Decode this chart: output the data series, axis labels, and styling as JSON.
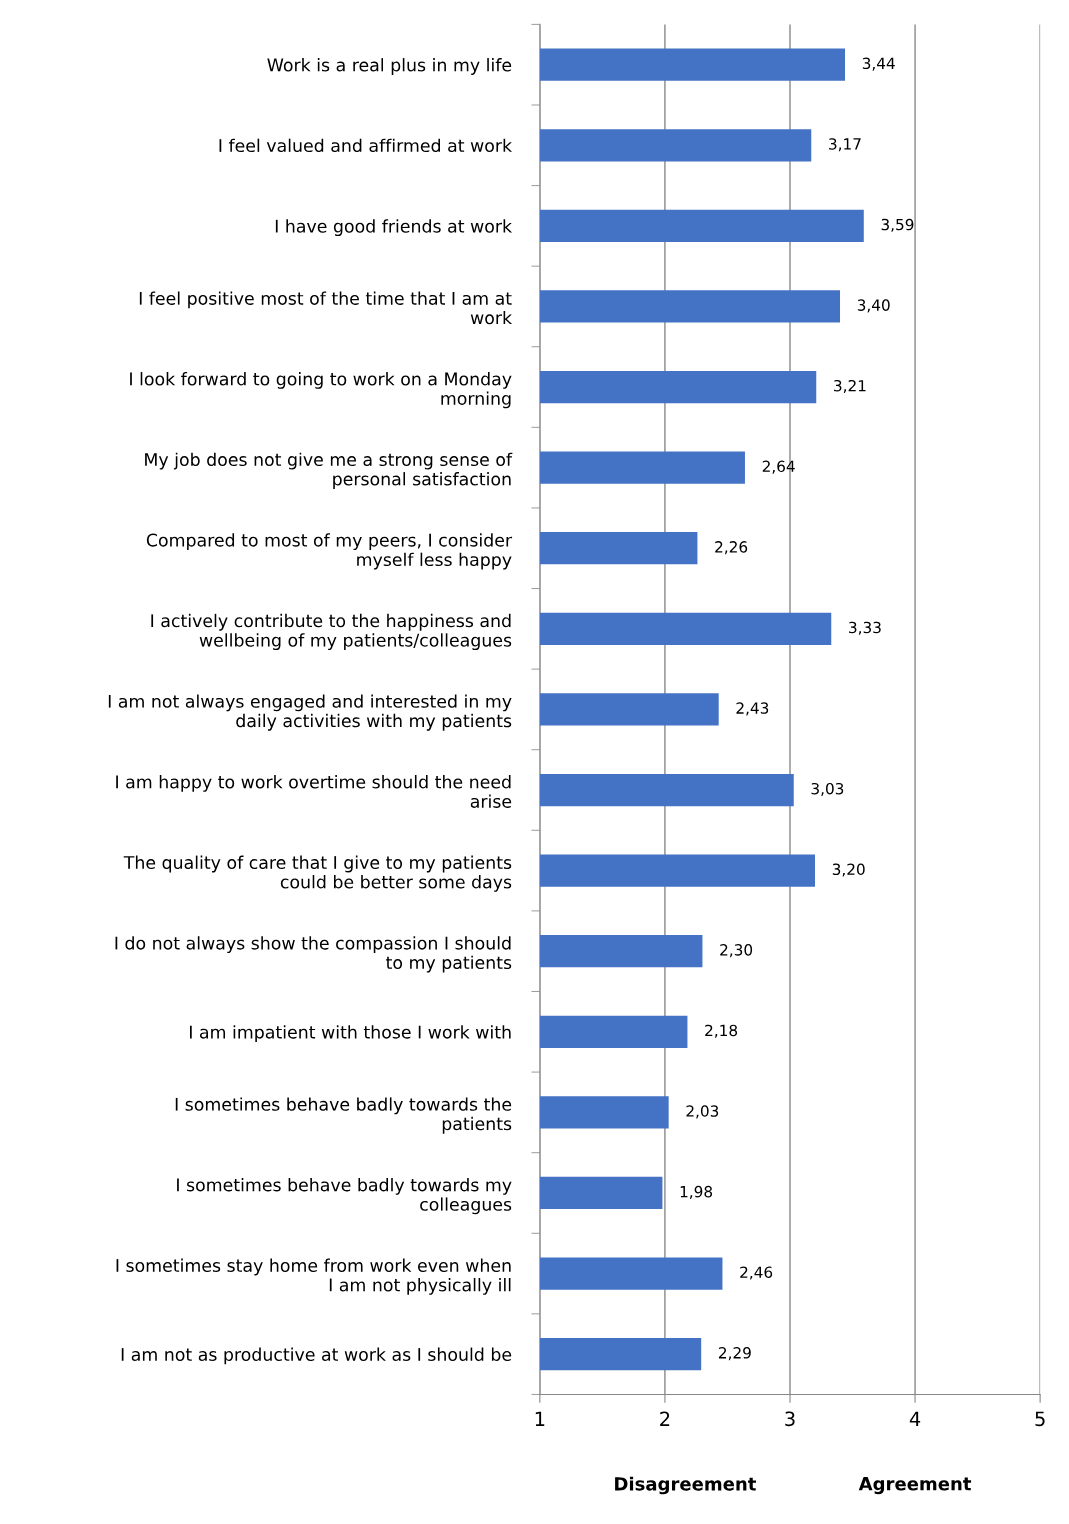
{
  "chart_data": {
    "type": "bar",
    "orientation": "horizontal",
    "categories": [
      "Work is a real plus in my life",
      "I feel valued and affirmed at work",
      "I have good friends at work",
      "I feel positive most of the time that I am at\nwork",
      "I look forward to going to work on a Monday\nmorning",
      "My job does not give me a strong sense of\npersonal satisfaction",
      "Compared to most of my peers, I consider\nmyself less happy",
      "I actively contribute to the happiness and\nwellbeing of my patients/colleagues",
      "I am not always engaged and interested in my\ndaily activities with my patients",
      "I am happy to work overtime should the need\narise",
      "The quality of care that I give to my patients\ncould be better some days",
      "I do not always show the compassion I should\nto my patients",
      "I am impatient with those I work with",
      "I sometimes behave badly towards the\npatients",
      "I sometimes behave badly towards my\ncolleagues",
      "I sometimes stay home from work even when\nI am not physically ill",
      "I am not as productive at work as I should be"
    ],
    "values": [
      3.44,
      3.17,
      3.59,
      3.4,
      3.21,
      2.64,
      2.26,
      3.33,
      2.43,
      3.03,
      3.2,
      2.3,
      2.18,
      2.03,
      1.98,
      2.46,
      2.29
    ],
    "value_labels": [
      "3,44",
      "3,17",
      "3,59",
      "3,40",
      "3,21",
      "2,64",
      "2,26",
      "3,33",
      "2,43",
      "3,03",
      "3,20",
      "2,30",
      "2,18",
      "2,03",
      "1,98",
      "2,46",
      "2,29"
    ],
    "color": "#4472c4",
    "xlim": [
      1,
      5
    ],
    "xticks": [
      1,
      2,
      3,
      4,
      5
    ],
    "grid": "x",
    "annotations": [
      "Disagreement",
      "Agreement"
    ]
  }
}
